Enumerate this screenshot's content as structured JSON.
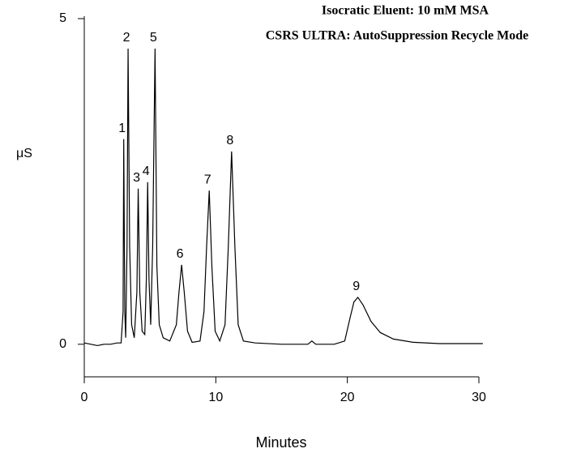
{
  "chart_data": {
    "type": "line",
    "title": "Isocratic Eluent: 10 mM MSA",
    "subtitle": "CSRS ULTRA: AutoSuppression Recycle Mode",
    "x_label": "Minutes",
    "y_label": "μS",
    "xlim": [
      0,
      30
    ],
    "xticks": [
      0,
      10,
      20,
      30
    ],
    "ylim": [
      -0.5,
      5
    ],
    "yticks": [
      0,
      5
    ],
    "peak_labels": [
      "1",
      "2",
      "3",
      "4",
      "5",
      "6",
      "7",
      "8",
      "9"
    ],
    "series": [
      {
        "color": "#000000",
        "x": [
          0,
          0.5,
          1,
          1.5,
          2,
          2.5,
          2.8,
          2.95,
          3.0,
          3.08,
          3.15,
          3.25,
          3.33,
          3.45,
          3.6,
          3.8,
          4.0,
          4.1,
          4.22,
          4.4,
          4.6,
          4.72,
          4.82,
          4.92,
          5.05,
          5.2,
          5.38,
          5.52,
          5.7,
          6,
          6.5,
          7.0,
          7.2,
          7.4,
          7.6,
          7.85,
          8.2,
          8.8,
          9.1,
          9.3,
          9.5,
          9.7,
          9.95,
          10.3,
          10.7,
          10.95,
          11.2,
          11.45,
          11.7,
          12.1,
          13,
          15,
          17,
          17.3,
          17.6,
          19,
          19.8,
          20.2,
          20.5,
          20.8,
          21.2,
          21.8,
          22.5,
          23.5,
          25,
          27,
          30.3
        ],
        "values": [
          0.02,
          0.0,
          -0.02,
          0.0,
          0.0,
          0.02,
          0.02,
          0.5,
          3.15,
          0.5,
          0.1,
          1.5,
          4.54,
          1.5,
          0.3,
          0.1,
          0.8,
          2.39,
          0.8,
          0.2,
          0.15,
          1.0,
          2.49,
          1.0,
          0.3,
          1.5,
          4.54,
          1.2,
          0.3,
          0.1,
          0.05,
          0.3,
          0.8,
          1.22,
          0.8,
          0.2,
          0.03,
          0.05,
          0.5,
          1.5,
          2.36,
          1.2,
          0.2,
          0.05,
          0.3,
          1.5,
          2.96,
          1.5,
          0.3,
          0.05,
          0.02,
          0.0,
          0.0,
          0.05,
          0.0,
          0.0,
          0.05,
          0.4,
          0.65,
          0.72,
          0.6,
          0.35,
          0.18,
          0.08,
          0.03,
          0.01,
          0.01
        ]
      }
    ]
  }
}
